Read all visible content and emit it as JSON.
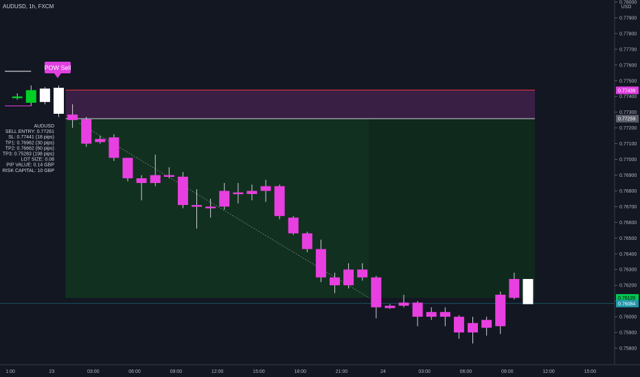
{
  "header": {
    "symbol_title": "AUDUSD, 1h, FXCM"
  },
  "axis": {
    "currency": "USD"
  },
  "signal": {
    "label": "POW Sell"
  },
  "info_box": {
    "lines": [
      "AUDUSD",
      "SELL ENTRY: 0.77261",
      "SL: 0.77441 (18 pips)",
      "TP1: 0.76962 (30 pips)",
      "TP2: 0.76662 (60 pips)",
      "TP3: 0.75283 (198 pips)",
      "LOT SIZE: 0.08",
      "PIP VALUE: 0.14 GBP",
      "RISK CAPITAL: 10 GBP"
    ]
  },
  "price_tags": [
    {
      "value": "0.77439",
      "price": 0.77439,
      "color": "#e040e0",
      "text_color": "#ffffff"
    },
    {
      "value": "0.77259",
      "price": 0.77259,
      "color": "#5d606b",
      "text_color": "#ffffff"
    },
    {
      "value": "0.76120",
      "price": 0.7612,
      "color": "#00c853",
      "text_color": "#000000"
    },
    {
      "value": "0.76084",
      "price": 0.76084,
      "color": "#2196a8",
      "text_color": "#ffffff"
    }
  ],
  "colors": {
    "background": "#131722",
    "bull_candle": "#ffffff",
    "bear_candle": "#e83fe0",
    "green_candle": "#00d026",
    "stop_zone": "#3a1f44",
    "target_zone": "#12301f",
    "target_zone_dark": "#10291d",
    "axis_text": "#b2b5be",
    "signal_tag": "#e040e0"
  },
  "chart_data": {
    "type": "candlestick",
    "title": "AUDUSD, 1h, FXCM",
    "y_unit": "USD",
    "ylim": [
      0.7575,
      0.78
    ],
    "y_ticks": [
      "0.78000",
      "0.77900",
      "0.77800",
      "0.77700",
      "0.77600",
      "0.77500",
      "0.77400",
      "0.77300",
      "0.77200",
      "0.77100",
      "0.77000",
      "0.76900",
      "0.76800",
      "0.76700",
      "0.76600",
      "0.76500",
      "0.76400",
      "0.76300",
      "0.76200",
      "0.76100",
      "0.76000",
      "0.75900",
      "0.75800"
    ],
    "x_ticks": [
      {
        "label": "1:00",
        "slot": -3.5
      },
      {
        "label": "23",
        "slot": -0.5
      },
      {
        "label": "03:00",
        "slot": 2.5
      },
      {
        "label": "06:00",
        "slot": 5.5
      },
      {
        "label": "09:00",
        "slot": 8.5
      },
      {
        "label": "12:00",
        "slot": 11.5
      },
      {
        "label": "15:00",
        "slot": 14.5
      },
      {
        "label": "18:00",
        "slot": 17.5
      },
      {
        "label": "21:00",
        "slot": 20.5
      },
      {
        "label": "24",
        "slot": 23.5
      },
      {
        "label": "03:00",
        "slot": 26.5
      },
      {
        "label": "06:00",
        "slot": 29.5
      },
      {
        "label": "09:00",
        "slot": 32.5
      },
      {
        "label": "12:00",
        "slot": 35.5
      },
      {
        "label": "15:00",
        "slot": 38.5
      }
    ],
    "candles": [
      {
        "slot": -3,
        "o": 0.77397,
        "h": 0.7742,
        "l": 0.7738,
        "c": 0.774,
        "kind": "green"
      },
      {
        "slot": -2,
        "o": 0.7736,
        "h": 0.7747,
        "l": 0.7734,
        "c": 0.7744,
        "kind": "green"
      },
      {
        "slot": -1,
        "o": 0.77365,
        "h": 0.7746,
        "l": 0.7735,
        "c": 0.7745,
        "kind": "bull"
      },
      {
        "slot": 0,
        "o": 0.77455,
        "h": 0.7747,
        "l": 0.7727,
        "c": 0.7729,
        "kind": "bull"
      },
      {
        "slot": 1,
        "o": 0.77285,
        "h": 0.7735,
        "l": 0.772,
        "c": 0.7725,
        "kind": "bear"
      },
      {
        "slot": 2,
        "o": 0.77255,
        "h": 0.7727,
        "l": 0.7708,
        "c": 0.771,
        "kind": "bear"
      },
      {
        "slot": 3,
        "o": 0.7713,
        "h": 0.7715,
        "l": 0.771,
        "c": 0.7711,
        "kind": "bear"
      },
      {
        "slot": 4,
        "o": 0.7714,
        "h": 0.7716,
        "l": 0.7699,
        "c": 0.7701,
        "kind": "bear"
      },
      {
        "slot": 5,
        "o": 0.7701,
        "h": 0.7701,
        "l": 0.7686,
        "c": 0.7688,
        "kind": "bear"
      },
      {
        "slot": 6,
        "o": 0.7688,
        "h": 0.769,
        "l": 0.7674,
        "c": 0.7685,
        "kind": "bear"
      },
      {
        "slot": 7,
        "o": 0.7685,
        "h": 0.7703,
        "l": 0.7683,
        "c": 0.769,
        "kind": "bear"
      },
      {
        "slot": 8,
        "o": 0.769,
        "h": 0.7695,
        "l": 0.7688,
        "c": 0.7689,
        "kind": "bear"
      },
      {
        "slot": 9,
        "o": 0.7689,
        "h": 0.7692,
        "l": 0.7669,
        "c": 0.7671,
        "kind": "bear"
      },
      {
        "slot": 10,
        "o": 0.7671,
        "h": 0.7681,
        "l": 0.7656,
        "c": 0.767,
        "kind": "bear"
      },
      {
        "slot": 11,
        "o": 0.767,
        "h": 0.7675,
        "l": 0.7663,
        "c": 0.7669,
        "kind": "bear"
      },
      {
        "slot": 12,
        "o": 0.768,
        "h": 0.7685,
        "l": 0.7668,
        "c": 0.767,
        "kind": "bear"
      },
      {
        "slot": 13,
        "o": 0.7679,
        "h": 0.7685,
        "l": 0.7672,
        "c": 0.7678,
        "kind": "bear"
      },
      {
        "slot": 14,
        "o": 0.768,
        "h": 0.7684,
        "l": 0.7674,
        "c": 0.7678,
        "kind": "bear"
      },
      {
        "slot": 15,
        "o": 0.7683,
        "h": 0.7687,
        "l": 0.7673,
        "c": 0.768,
        "kind": "bear"
      },
      {
        "slot": 16,
        "o": 0.7683,
        "h": 0.7684,
        "l": 0.7662,
        "c": 0.7664,
        "kind": "bear"
      },
      {
        "slot": 17,
        "o": 0.7663,
        "h": 0.7664,
        "l": 0.7652,
        "c": 0.7653,
        "kind": "bear"
      },
      {
        "slot": 18,
        "o": 0.7653,
        "h": 0.7654,
        "l": 0.7641,
        "c": 0.7643,
        "kind": "bear"
      },
      {
        "slot": 19,
        "o": 0.7643,
        "h": 0.7649,
        "l": 0.7622,
        "c": 0.7625,
        "kind": "bear"
      },
      {
        "slot": 20,
        "o": 0.7625,
        "h": 0.7628,
        "l": 0.7615,
        "c": 0.762,
        "kind": "bear"
      },
      {
        "slot": 21,
        "o": 0.762,
        "h": 0.7634,
        "l": 0.7618,
        "c": 0.763,
        "kind": "bear"
      },
      {
        "slot": 22,
        "o": 0.763,
        "h": 0.7634,
        "l": 0.7623,
        "c": 0.7625,
        "kind": "bear"
      },
      {
        "slot": 23,
        "o": 0.7625,
        "h": 0.7626,
        "l": 0.7599,
        "c": 0.7606,
        "kind": "bear"
      },
      {
        "slot": 24,
        "o": 0.7607,
        "h": 0.7608,
        "l": 0.7605,
        "c": 0.76055,
        "kind": "bear"
      },
      {
        "slot": 25,
        "o": 0.7609,
        "h": 0.7614,
        "l": 0.7606,
        "c": 0.7607,
        "kind": "bear"
      },
      {
        "slot": 26,
        "o": 0.7609,
        "h": 0.761,
        "l": 0.7594,
        "c": 0.76,
        "kind": "bear"
      },
      {
        "slot": 27,
        "o": 0.7603,
        "h": 0.7606,
        "l": 0.7598,
        "c": 0.76,
        "kind": "bear"
      },
      {
        "slot": 28,
        "o": 0.7603,
        "h": 0.7606,
        "l": 0.7594,
        "c": 0.76,
        "kind": "bear"
      },
      {
        "slot": 29,
        "o": 0.76,
        "h": 0.7601,
        "l": 0.7586,
        "c": 0.759,
        "kind": "bear"
      },
      {
        "slot": 30,
        "o": 0.7596,
        "h": 0.76,
        "l": 0.7583,
        "c": 0.759,
        "kind": "bear"
      },
      {
        "slot": 31,
        "o": 0.7593,
        "h": 0.76,
        "l": 0.7588,
        "c": 0.7598,
        "kind": "bear"
      },
      {
        "slot": 32,
        "o": 0.7594,
        "h": 0.7616,
        "l": 0.7589,
        "c": 0.7614,
        "kind": "bear"
      },
      {
        "slot": 33,
        "o": 0.7612,
        "h": 0.7628,
        "l": 0.7611,
        "c": 0.7624,
        "kind": "bear"
      },
      {
        "slot": 34,
        "o": 0.7608,
        "h": 0.7624,
        "l": 0.7608,
        "c": 0.7624,
        "kind": "bull"
      }
    ],
    "zones": {
      "entry": 0.77259,
      "stop": 0.77441,
      "target": 0.7612,
      "start_slot": 0.5,
      "end_slot": 34.5,
      "mid_slot": 22.5
    },
    "trend_line": {
      "from_slot": 1.5,
      "from_price": 0.7723,
      "to_slot": 22.5,
      "to_price": 0.7612
    },
    "current_price_line": 0.76084,
    "legend_marks": [
      {
        "slot_from": -3.9,
        "slot_to": -2.0,
        "price": 0.7756,
        "color": "#ffffff"
      },
      {
        "slot_from": -3.9,
        "slot_to": -2.0,
        "price": 0.7734,
        "color": "#e83fe0"
      }
    ]
  }
}
